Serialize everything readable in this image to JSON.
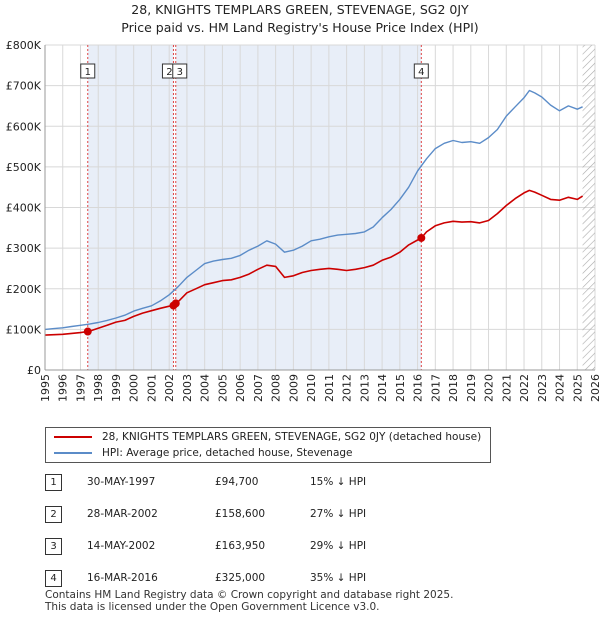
{
  "title_line1": "28, KNIGHTS TEMPLARS GREEN, STEVENAGE, SG2 0JY",
  "title_line2": "Price paid vs. HM Land Registry's House Price Index (HPI)",
  "colors": {
    "property": "#cc0000",
    "hpi": "#5b8cc8",
    "shade": "#e8eef8",
    "grid": "#d8d8d8"
  },
  "chart_data": {
    "type": "line",
    "title": "28, KNIGHTS TEMPLARS GREEN, STEVENAGE, SG2 0JY — Price paid vs. HM Land Registry's House Price Index (HPI)",
    "xlim": [
      1995,
      2026
    ],
    "ylim": [
      0,
      800000
    ],
    "y_ticks": [
      {
        "v": 0,
        "label": "£0"
      },
      {
        "v": 100000,
        "label": "£100K"
      },
      {
        "v": 200000,
        "label": "£200K"
      },
      {
        "v": 300000,
        "label": "£300K"
      },
      {
        "v": 400000,
        "label": "£400K"
      },
      {
        "v": 500000,
        "label": "£500K"
      },
      {
        "v": 600000,
        "label": "£600K"
      },
      {
        "v": 700000,
        "label": "£700K"
      },
      {
        "v": 800000,
        "label": "£800K"
      }
    ],
    "x_ticks": [
      "1995",
      "1996",
      "1997",
      "1998",
      "1999",
      "2000",
      "2001",
      "2002",
      "2003",
      "2004",
      "2005",
      "2006",
      "2007",
      "2008",
      "2009",
      "2010",
      "2011",
      "2012",
      "2013",
      "2014",
      "2015",
      "2016",
      "2017",
      "2018",
      "2019",
      "2020",
      "2021",
      "2022",
      "2023",
      "2024",
      "2025",
      "2026"
    ],
    "grid": true,
    "series": [
      {
        "name": "HPI: Average price, detached house, Stevenage",
        "key": "hpi",
        "x": [
          1995,
          1995.5,
          1996,
          1996.5,
          1997,
          1997.5,
          1998,
          1998.5,
          1999,
          1999.5,
          2000,
          2000.5,
          2001,
          2001.5,
          2002,
          2002.5,
          2003,
          2003.5,
          2004,
          2004.5,
          2005,
          2005.5,
          2006,
          2006.5,
          2007,
          2007.5,
          2008,
          2008.5,
          2009,
          2009.5,
          2010,
          2010.5,
          2011,
          2011.5,
          2012,
          2012.5,
          2013,
          2013.5,
          2014,
          2014.5,
          2015,
          2015.5,
          2016,
          2016.5,
          2017,
          2017.5,
          2018,
          2018.5,
          2019,
          2019.5,
          2020,
          2020.5,
          2021,
          2021.5,
          2022,
          2022.3,
          2022.6,
          2023,
          2023.5,
          2024,
          2024.5,
          2025,
          2025.3
        ],
        "values": [
          100000,
          102000,
          104000,
          107000,
          110000,
          113000,
          117000,
          122000,
          128000,
          135000,
          145000,
          152000,
          158000,
          170000,
          185000,
          205000,
          228000,
          245000,
          262000,
          268000,
          272000,
          275000,
          282000,
          295000,
          305000,
          318000,
          310000,
          290000,
          295000,
          305000,
          318000,
          322000,
          328000,
          332000,
          334000,
          336000,
          340000,
          352000,
          375000,
          395000,
          420000,
          450000,
          490000,
          520000,
          545000,
          558000,
          565000,
          560000,
          562000,
          558000,
          572000,
          592000,
          625000,
          648000,
          670000,
          688000,
          682000,
          672000,
          652000,
          638000,
          650000,
          642000,
          648000
        ]
      },
      {
        "name": "28, KNIGHTS TEMPLARS GREEN, STEVENAGE, SG2 0JY (detached house)",
        "key": "property",
        "x": [
          1995,
          1995.5,
          1996,
          1996.5,
          1997,
          1997.41,
          1997.6,
          1998,
          1998.5,
          1999,
          1999.5,
          2000,
          2000.5,
          2001,
          2001.5,
          2002,
          2002.24,
          2002.37,
          2002.6,
          2003,
          2003.5,
          2004,
          2004.5,
          2005,
          2005.5,
          2006,
          2006.5,
          2007,
          2007.5,
          2008,
          2008.5,
          2009,
          2009.5,
          2010,
          2010.5,
          2011,
          2011.5,
          2012,
          2012.5,
          2013,
          2013.5,
          2014,
          2014.5,
          2015,
          2015.5,
          2016,
          2016.21,
          2016.5,
          2017,
          2017.5,
          2018,
          2018.5,
          2019,
          2019.5,
          2020,
          2020.5,
          2021,
          2021.5,
          2022,
          2022.3,
          2022.6,
          2023,
          2023.5,
          2024,
          2024.5,
          2025,
          2025.3
        ],
        "values": [
          86000,
          87000,
          88000,
          90000,
          92000,
          94700,
          97000,
          103000,
          110000,
          118000,
          122000,
          132000,
          140000,
          146000,
          152000,
          157000,
          158600,
          163950,
          172000,
          190000,
          200000,
          210000,
          215000,
          220000,
          222000,
          228000,
          236000,
          248000,
          258000,
          255000,
          228000,
          232000,
          240000,
          245000,
          248000,
          250000,
          248000,
          245000,
          248000,
          252000,
          258000,
          270000,
          278000,
          290000,
          308000,
          320000,
          325000,
          340000,
          355000,
          362000,
          366000,
          364000,
          365000,
          362000,
          368000,
          385000,
          405000,
          422000,
          436000,
          442000,
          438000,
          430000,
          420000,
          418000,
          425000,
          420000,
          428000
        ]
      }
    ],
    "sales": [
      {
        "n": "1",
        "x": 1997.41,
        "price": 94700
      },
      {
        "n": "2",
        "x": 2002.24,
        "price": 158600
      },
      {
        "n": "3",
        "x": 2002.37,
        "price": 163950
      },
      {
        "n": "4",
        "x": 2016.21,
        "price": 325000
      }
    ],
    "forecast_from": 2025.3
  },
  "legend": {
    "property": "28, KNIGHTS TEMPLARS GREEN, STEVENAGE, SG2 0JY (detached house)",
    "hpi": "HPI: Average price, detached house, Stevenage"
  },
  "transactions": [
    {
      "n": "1",
      "date": "30-MAY-1997",
      "price": "£94,700",
      "hpi": "15% ↓ HPI"
    },
    {
      "n": "2",
      "date": "28-MAR-2002",
      "price": "£158,600",
      "hpi": "27% ↓ HPI"
    },
    {
      "n": "3",
      "date": "14-MAY-2002",
      "price": "£163,950",
      "hpi": "29% ↓ HPI"
    },
    {
      "n": "4",
      "date": "16-MAR-2016",
      "price": "£325,000",
      "hpi": "35% ↓ HPI"
    }
  ],
  "footer": {
    "line1": "Contains HM Land Registry data © Crown copyright and database right 2025.",
    "line2": "This data is licensed under the Open Government Licence v3.0."
  }
}
